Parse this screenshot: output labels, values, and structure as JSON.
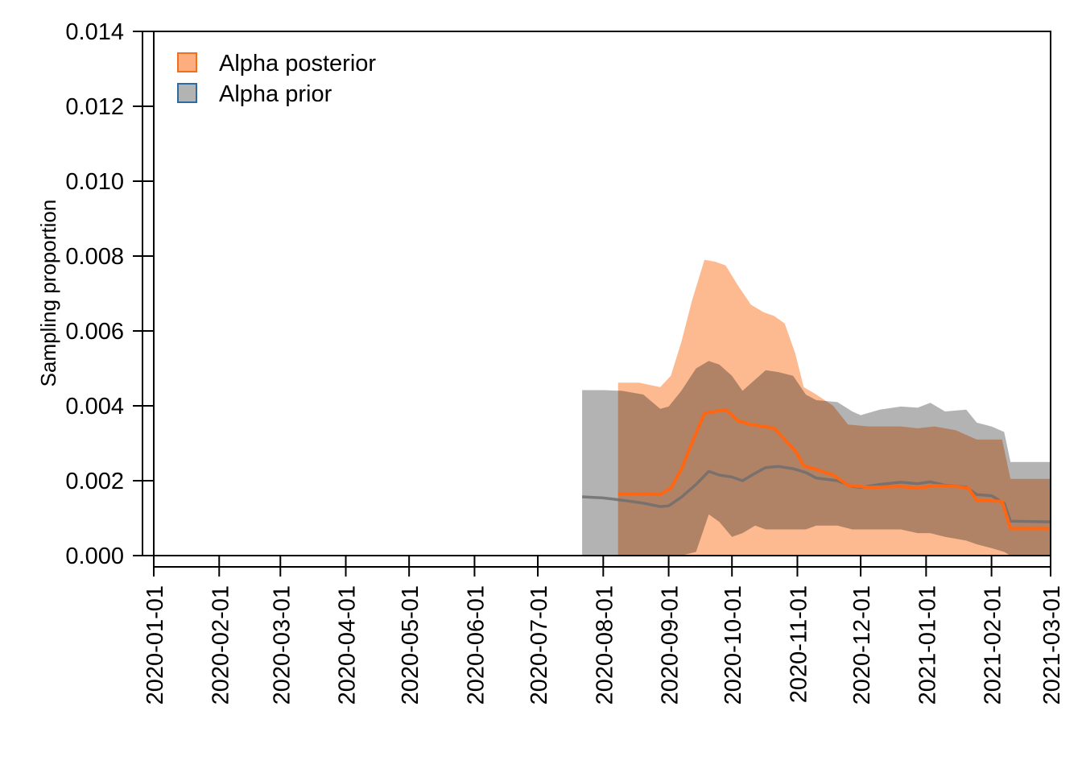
{
  "chart_data": {
    "type": "area",
    "ylabel": "Sampling proportion",
    "xlabel": "",
    "ylim": [
      0,
      0.014
    ],
    "xlim": [
      "2020-01-01",
      "2021-03-01"
    ],
    "y_ticks": [
      "0.000",
      "0.002",
      "0.004",
      "0.006",
      "0.008",
      "0.010",
      "0.012",
      "0.014"
    ],
    "x_ticks": [
      "2020-01-01",
      "2020-02-01",
      "2020-03-01",
      "2020-04-01",
      "2020-05-01",
      "2020-06-01",
      "2020-07-01",
      "2020-08-01",
      "2020-09-01",
      "2020-10-01",
      "2020-11-01",
      "2020-12-01",
      "2021-01-01",
      "2021-02-01",
      "2021-03-01"
    ],
    "legend": {
      "position": "top-left"
    },
    "grid": false,
    "series": [
      {
        "name": "Alpha prior",
        "fill_color": "#b3b3b3",
        "legend_border_color": "#2c6aa0",
        "line_color": "#6e6e6e",
        "points": [
          {
            "x": "2020-07-22",
            "lower": 0.0,
            "median": 0.00157,
            "upper": 0.00442
          },
          {
            "x": "2020-08-01",
            "lower": 0.0,
            "median": 0.00154,
            "upper": 0.00442
          },
          {
            "x": "2020-08-10",
            "lower": 0.0,
            "median": 0.00148,
            "upper": 0.0044
          },
          {
            "x": "2020-08-20",
            "lower": 0.0,
            "median": 0.0014,
            "upper": 0.0043
          },
          {
            "x": "2020-08-28",
            "lower": 0.0,
            "median": 0.00131,
            "upper": 0.00392
          },
          {
            "x": "2020-09-01",
            "lower": 0.0,
            "median": 0.00133,
            "upper": 0.00398
          },
          {
            "x": "2020-09-07",
            "lower": 0.0,
            "median": 0.00156,
            "upper": 0.0044
          },
          {
            "x": "2020-09-14",
            "lower": 0.0001,
            "median": 0.0019,
            "upper": 0.005
          },
          {
            "x": "2020-09-20",
            "lower": 0.0011,
            "median": 0.00225,
            "upper": 0.0052
          },
          {
            "x": "2020-09-25",
            "lower": 0.0009,
            "median": 0.00215,
            "upper": 0.0051
          },
          {
            "x": "2020-10-01",
            "lower": 0.0005,
            "median": 0.0021,
            "upper": 0.0048
          },
          {
            "x": "2020-10-06",
            "lower": 0.0006,
            "median": 0.002,
            "upper": 0.0044
          },
          {
            "x": "2020-10-12",
            "lower": 0.0008,
            "median": 0.0022,
            "upper": 0.0047
          },
          {
            "x": "2020-10-17",
            "lower": 0.0007,
            "median": 0.00235,
            "upper": 0.00495
          },
          {
            "x": "2020-10-23",
            "lower": 0.0007,
            "median": 0.00238,
            "upper": 0.0049
          },
          {
            "x": "2020-10-30",
            "lower": 0.0007,
            "median": 0.00232,
            "upper": 0.0048
          },
          {
            "x": "2020-11-05",
            "lower": 0.0007,
            "median": 0.00222,
            "upper": 0.0043
          },
          {
            "x": "2020-11-10",
            "lower": 0.0008,
            "median": 0.00207,
            "upper": 0.00415
          },
          {
            "x": "2020-11-20",
            "lower": 0.0008,
            "median": 0.002,
            "upper": 0.0041
          },
          {
            "x": "2020-11-27",
            "lower": 0.0007,
            "median": 0.00185,
            "upper": 0.00385
          },
          {
            "x": "2020-12-01",
            "lower": 0.0007,
            "median": 0.00182,
            "upper": 0.00375
          },
          {
            "x": "2020-12-10",
            "lower": 0.0007,
            "median": 0.0019,
            "upper": 0.0039
          },
          {
            "x": "2020-12-20",
            "lower": 0.0007,
            "median": 0.00196,
            "upper": 0.00398
          },
          {
            "x": "2020-12-28",
            "lower": 0.0006,
            "median": 0.00192,
            "upper": 0.00395
          },
          {
            "x": "2021-01-03",
            "lower": 0.0006,
            "median": 0.00197,
            "upper": 0.00408
          },
          {
            "x": "2021-01-10",
            "lower": 0.0005,
            "median": 0.00188,
            "upper": 0.00385
          },
          {
            "x": "2021-01-20",
            "lower": 0.0004,
            "median": 0.00183,
            "upper": 0.0039
          },
          {
            "x": "2021-01-25",
            "lower": 0.0003,
            "median": 0.00163,
            "upper": 0.00355
          },
          {
            "x": "2021-02-01",
            "lower": 0.0002,
            "median": 0.0016,
            "upper": 0.00345
          },
          {
            "x": "2021-02-07",
            "lower": 0.0001,
            "median": 0.0014,
            "upper": 0.0033
          },
          {
            "x": "2021-02-10",
            "lower": 0.0,
            "median": 0.00092,
            "upper": 0.0025
          },
          {
            "x": "2021-03-01",
            "lower": 0.0,
            "median": 0.0009,
            "upper": 0.0025
          }
        ]
      },
      {
        "name": "Alpha posterior",
        "fill_color": "#fdae7e",
        "legend_border_color": "#f07020",
        "line_color": "#ff6611",
        "points": [
          {
            "x": "2020-08-08",
            "lower": 0.0,
            "median": 0.00165,
            "upper": 0.00462
          },
          {
            "x": "2020-08-18",
            "lower": 0.0,
            "median": 0.00165,
            "upper": 0.00462
          },
          {
            "x": "2020-08-28",
            "lower": 0.0,
            "median": 0.00163,
            "upper": 0.0045
          },
          {
            "x": "2020-09-02",
            "lower": 0.0,
            "median": 0.0018,
            "upper": 0.0048
          },
          {
            "x": "2020-09-07",
            "lower": 0.0,
            "median": 0.0023,
            "upper": 0.0057
          },
          {
            "x": "2020-09-12",
            "lower": 0.0,
            "median": 0.003,
            "upper": 0.0068
          },
          {
            "x": "2020-09-18",
            "lower": 0.0,
            "median": 0.0038,
            "upper": 0.0079
          },
          {
            "x": "2020-09-23",
            "lower": 0.0,
            "median": 0.00385,
            "upper": 0.00785
          },
          {
            "x": "2020-09-28",
            "lower": 0.0,
            "median": 0.0039,
            "upper": 0.00775
          },
          {
            "x": "2020-10-04",
            "lower": 0.0,
            "median": 0.0036,
            "upper": 0.0072
          },
          {
            "x": "2020-10-10",
            "lower": 0.0,
            "median": 0.0035,
            "upper": 0.0067
          },
          {
            "x": "2020-10-16",
            "lower": 0.0,
            "median": 0.00345,
            "upper": 0.0065
          },
          {
            "x": "2020-10-21",
            "lower": 0.0,
            "median": 0.0034,
            "upper": 0.0064
          },
          {
            "x": "2020-10-26",
            "lower": 0.0,
            "median": 0.0031,
            "upper": 0.0062
          },
          {
            "x": "2020-10-31",
            "lower": 0.0,
            "median": 0.0028,
            "upper": 0.0054
          },
          {
            "x": "2020-11-04",
            "lower": 0.0,
            "median": 0.0024,
            "upper": 0.0045
          },
          {
            "x": "2020-11-10",
            "lower": 0.0,
            "median": 0.0023,
            "upper": 0.0043
          },
          {
            "x": "2020-11-18",
            "lower": 0.0,
            "median": 0.00215,
            "upper": 0.004
          },
          {
            "x": "2020-11-25",
            "lower": 0.0,
            "median": 0.00188,
            "upper": 0.0035
          },
          {
            "x": "2020-12-05",
            "lower": 0.0,
            "median": 0.00182,
            "upper": 0.00345
          },
          {
            "x": "2020-12-20",
            "lower": 0.0,
            "median": 0.00185,
            "upper": 0.00345
          },
          {
            "x": "2020-12-28",
            "lower": 0.0,
            "median": 0.0018,
            "upper": 0.0034
          },
          {
            "x": "2021-01-05",
            "lower": 0.0,
            "median": 0.00187,
            "upper": 0.00345
          },
          {
            "x": "2021-01-15",
            "lower": 0.0,
            "median": 0.00185,
            "upper": 0.00335
          },
          {
            "x": "2021-01-21",
            "lower": 0.0,
            "median": 0.0018,
            "upper": 0.0032
          },
          {
            "x": "2021-01-25",
            "lower": 0.0,
            "median": 0.00148,
            "upper": 0.0031
          },
          {
            "x": "2021-02-06",
            "lower": 0.0,
            "median": 0.00145,
            "upper": 0.0031
          },
          {
            "x": "2021-02-10",
            "lower": 0.0,
            "median": 0.00072,
            "upper": 0.00205
          },
          {
            "x": "2021-03-01",
            "lower": 0.0,
            "median": 0.00072,
            "upper": 0.00205
          }
        ]
      }
    ]
  }
}
